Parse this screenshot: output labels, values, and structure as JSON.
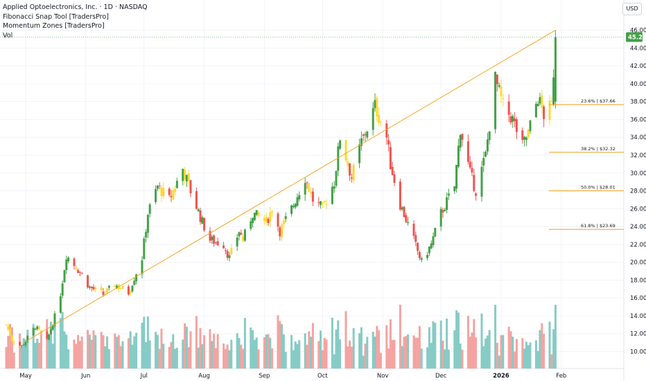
{
  "legend": {
    "title": "Applied Optoelectronics, Inc. · 1D · NASDAQ",
    "indicators": [
      "Fibonacci Snap Tool [TradersPro]",
      "Momentum Zones [TradersPro]",
      "Vol"
    ]
  },
  "currency": "USD",
  "last_price": "45.23",
  "colors": {
    "up": "#43a047",
    "down": "#ef5350",
    "neutral": "#fdd835",
    "vol_up": "#86cbc5",
    "vol_down": "#f4a3a1",
    "fib": "#f39c12",
    "trend": "#f5a623",
    "price_tag": "#43a047"
  },
  "chart_data": {
    "type": "candlestick",
    "x_ticks": [
      "May",
      "Jun",
      "Jul",
      "Aug",
      "Sep",
      "Oct",
      "Nov",
      "Dec",
      "2026",
      "Feb"
    ],
    "y_ticks": [
      "10.00",
      "12.00",
      "14.00",
      "16.00",
      "18.00",
      "20.00",
      "22.00",
      "24.00",
      "26.00",
      "28.00",
      "30.00",
      "32.00",
      "34.00",
      "36.00",
      "38.00",
      "40.00",
      "42.00",
      "44.00",
      "46.00"
    ],
    "y_range": [
      8.5,
      47.2
    ],
    "fib_levels": [
      {
        "label": "23.6% | $37.66",
        "value": 37.66
      },
      {
        "label": "38.2% | $32.32",
        "value": 32.32
      },
      {
        "label": "50.0% | $28.01",
        "value": 28.01
      },
      {
        "label": "61.8% | $23.69",
        "value": 23.69
      }
    ],
    "trendline": [
      {
        "date": "2025-04-30",
        "price": 11.0
      },
      {
        "date": "2026-01-29",
        "price": 46.0
      }
    ],
    "ohlc_anchors": [
      [
        "2025-04-21",
        13.0
      ],
      [
        "2025-04-24",
        11.3
      ],
      [
        "2025-04-29",
        10.6
      ],
      [
        "2025-05-06",
        12.8
      ],
      [
        "2025-05-12",
        11.2
      ],
      [
        "2025-05-16",
        13.9
      ],
      [
        "2025-05-19",
        16.5
      ],
      [
        "2025-05-22",
        20.8
      ],
      [
        "2025-05-29",
        18.9
      ],
      [
        "2025-06-03",
        17.2
      ],
      [
        "2025-06-10",
        16.4
      ],
      [
        "2025-06-16",
        17.5
      ],
      [
        "2025-06-23",
        16.6
      ],
      [
        "2025-06-30",
        20.5
      ],
      [
        "2025-07-03",
        25.5
      ],
      [
        "2025-07-08",
        28.5
      ],
      [
        "2025-07-14",
        27.0
      ],
      [
        "2025-07-21",
        30.5
      ],
      [
        "2025-07-25",
        28.0
      ],
      [
        "2025-07-31",
        24.5
      ],
      [
        "2025-08-04",
        22.5
      ],
      [
        "2025-08-11",
        22.0
      ],
      [
        "2025-08-14",
        20.5
      ],
      [
        "2025-08-19",
        23.5
      ],
      [
        "2025-08-21",
        22.5
      ],
      [
        "2025-08-26",
        25.5
      ],
      [
        "2025-09-02",
        24.5
      ],
      [
        "2025-09-05",
        26.0
      ],
      [
        "2025-09-09",
        23.5
      ],
      [
        "2025-09-15",
        26.0
      ],
      [
        "2025-09-22",
        29.5
      ],
      [
        "2025-09-26",
        27.0
      ],
      [
        "2025-10-01",
        26.0
      ],
      [
        "2025-10-07",
        29.0
      ],
      [
        "2025-10-10",
        34.0
      ],
      [
        "2025-10-16",
        29.5
      ],
      [
        "2025-10-21",
        33.5
      ],
      [
        "2025-10-24",
        35.0
      ],
      [
        "2025-10-28",
        37.5
      ],
      [
        "2025-11-03",
        34.0
      ],
      [
        "2025-11-05",
        31.0
      ],
      [
        "2025-11-10",
        26.5
      ],
      [
        "2025-11-17",
        22.5
      ],
      [
        "2025-11-21",
        20.0
      ],
      [
        "2025-11-26",
        22.0
      ],
      [
        "2025-12-01",
        25.5
      ],
      [
        "2025-12-08",
        28.5
      ],
      [
        "2025-12-11",
        35.0
      ],
      [
        "2025-12-16",
        30.0
      ],
      [
        "2025-12-19",
        28.0
      ],
      [
        "2025-12-24",
        32.0
      ],
      [
        "2025-12-29",
        40.5
      ],
      [
        "2026-01-02",
        37.5
      ],
      [
        "2026-01-07",
        36.0
      ],
      [
        "2026-01-12",
        33.0
      ],
      [
        "2026-01-15",
        34.5
      ],
      [
        "2026-01-20",
        38.5
      ],
      [
        "2026-01-23",
        36.5
      ],
      [
        "2026-01-27",
        37.5
      ],
      [
        "2026-01-29",
        45.23
      ]
    ],
    "volume_range": [
      0,
      5.3
    ]
  }
}
